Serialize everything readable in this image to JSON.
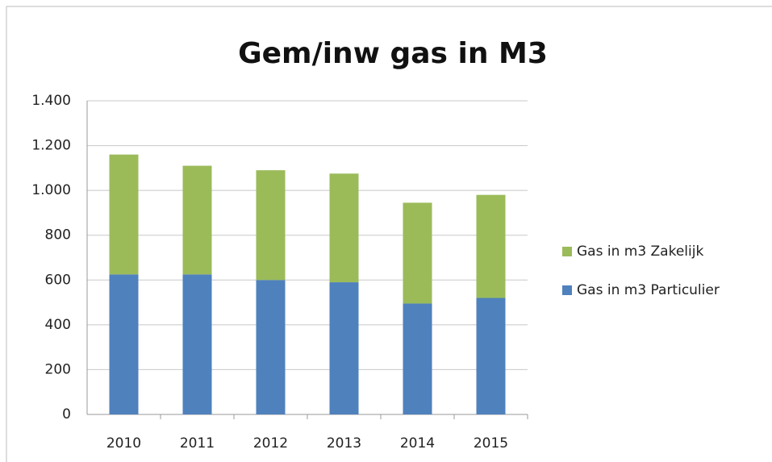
{
  "chart_data": {
    "type": "stacked_bar",
    "title": "Gem/inw gas in M3",
    "categories": [
      "2010",
      "2011",
      "2012",
      "2013",
      "2014",
      "2015"
    ],
    "series": [
      {
        "name": "Gas in m3 Particulier",
        "color": "#4f81bd",
        "values": [
          625,
          625,
          600,
          590,
          495,
          520
        ]
      },
      {
        "name": "Gas in m3 Zakelijk",
        "color": "#9bbb59",
        "values": [
          535,
          485,
          490,
          485,
          450,
          460
        ]
      }
    ],
    "ylim": [
      0,
      1400
    ],
    "yticks": [
      0,
      200,
      400,
      600,
      800,
      {
        "value": 1000,
        "label": "1.000"
      },
      {
        "value": 1200,
        "label": "1.200"
      },
      {
        "value": 1400,
        "label": "1.400"
      }
    ],
    "grid": true,
    "legend": "right"
  }
}
